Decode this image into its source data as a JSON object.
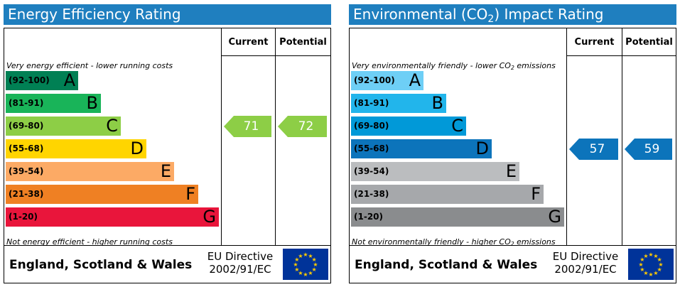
{
  "chart_data": [
    {
      "type": "bar",
      "title": "Energy Efficiency Rating",
      "columns": [
        "Current",
        "Potential"
      ],
      "top_caption": "Very energy efficient - lower running costs",
      "bottom_caption": "Not energy efficient - higher running costs",
      "bands": [
        {
          "range": "(92-100)",
          "letter": "A",
          "color": "#008054"
        },
        {
          "range": "(81-91)",
          "letter": "B",
          "color": "#19b459"
        },
        {
          "range": "(69-80)",
          "letter": "C",
          "color": "#8dce46"
        },
        {
          "range": "(55-68)",
          "letter": "D",
          "color": "#ffd500"
        },
        {
          "range": "(39-54)",
          "letter": "E",
          "color": "#fcaa65"
        },
        {
          "range": "(21-38)",
          "letter": "F",
          "color": "#ef8023"
        },
        {
          "range": "(1-20)",
          "letter": "G",
          "color": "#e9153b"
        }
      ],
      "current": {
        "value": 71,
        "band": "C",
        "color": "#8dce46"
      },
      "potential": {
        "value": 72,
        "band": "C",
        "color": "#8dce46"
      },
      "footer_region": "England, Scotland & Wales",
      "footer_directive_line1": "EU Directive",
      "footer_directive_line2": "2002/91/EC"
    },
    {
      "type": "bar",
      "title_prefix": "Environmental (CO",
      "title_sub": "2",
      "title_suffix": ") Impact Rating",
      "columns": [
        "Current",
        "Potential"
      ],
      "top_caption_prefix": "Very environmentally friendly - lower CO",
      "top_caption_sub": "2",
      "top_caption_suffix": " emissions",
      "bottom_caption_prefix": "Not environmentally friendly - higher CO",
      "bottom_caption_sub": "2",
      "bottom_caption_suffix": " emissions",
      "bands": [
        {
          "range": "(92-100)",
          "letter": "A",
          "color": "#6ecff6"
        },
        {
          "range": "(81-91)",
          "letter": "B",
          "color": "#22b5eb"
        },
        {
          "range": "(69-80)",
          "letter": "C",
          "color": "#0199d8"
        },
        {
          "range": "(55-68)",
          "letter": "D",
          "color": "#0c74bb"
        },
        {
          "range": "(39-54)",
          "letter": "E",
          "color": "#bbbdbf"
        },
        {
          "range": "(21-38)",
          "letter": "F",
          "color": "#a6a8ab"
        },
        {
          "range": "(1-20)",
          "letter": "G",
          "color": "#8a8c8e"
        }
      ],
      "current": {
        "value": 57,
        "band": "D",
        "color": "#0c74bb"
      },
      "potential": {
        "value": 59,
        "band": "D",
        "color": "#0c74bb"
      },
      "footer_region": "England, Scotland & Wales",
      "footer_directive_line1": "EU Directive",
      "footer_directive_line2": "2002/91/EC"
    }
  ]
}
